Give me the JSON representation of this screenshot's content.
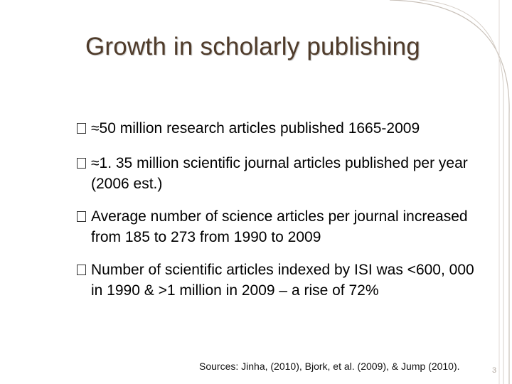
{
  "slide": {
    "title": "Growth in scholarly publishing",
    "bullets": [
      "≈50 million research articles published 1665-2009",
      "≈1. 35 million scientific journal articles published per year (2006 est.)",
      "Average number of science articles per journal increased from 185 to 273 from 1990 to 2009",
      "Number of scientific articles indexed by ISI was <600, 000 in 1990 & >1 million in 2009 – a rise of 72%"
    ],
    "sources": "Sources: Jinha, (2010), Bjork, et al. (2009), & Jump (2010).",
    "page_number": "3"
  },
  "colors": {
    "title": "#4f3b2a",
    "frame": "#c8c0b8",
    "page_number": "#b2a9a0"
  }
}
